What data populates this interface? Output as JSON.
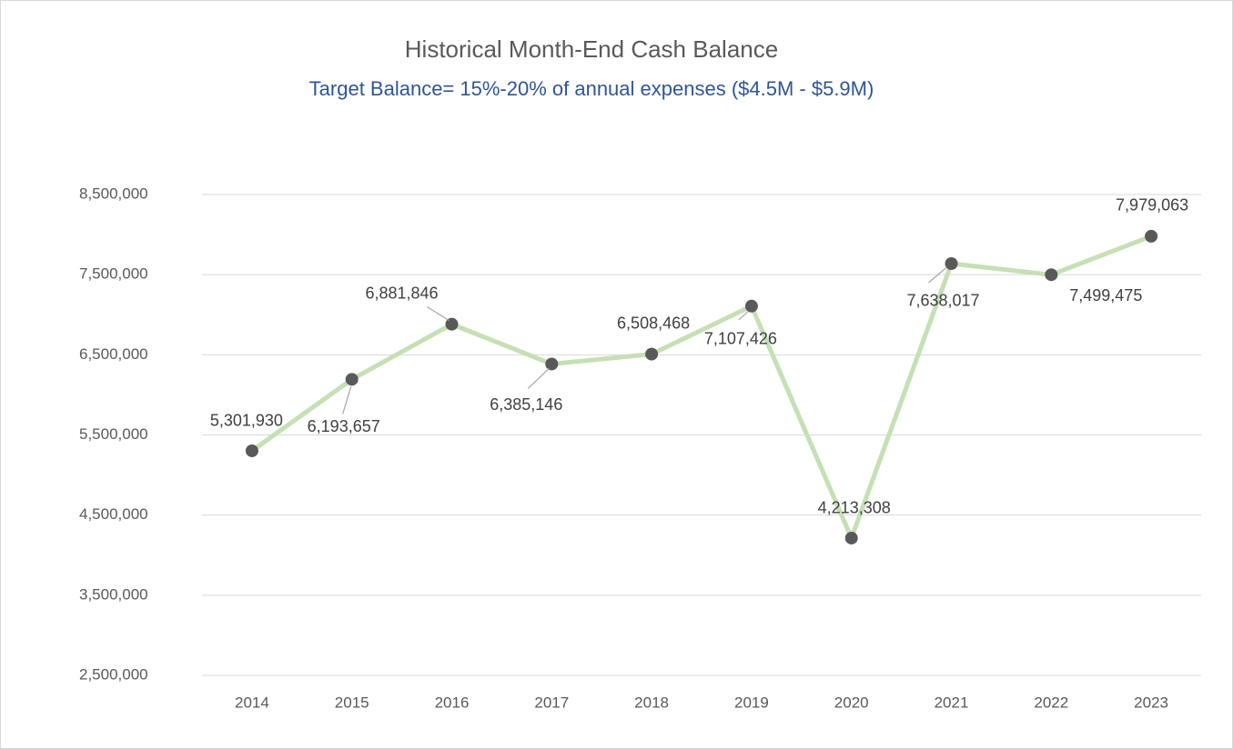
{
  "chart_data": {
    "type": "line",
    "title": "Historical Month-End Cash Balance",
    "subtitle": "Target Balance= 15%-20% of annual expenses ($4.5M - $5.9M)",
    "categories": [
      "2014",
      "2015",
      "2016",
      "2017",
      "2018",
      "2019",
      "2020",
      "2021",
      "2022",
      "2023"
    ],
    "series": [
      {
        "name": "Month-End Cash Balance",
        "color": "#c5e0b4",
        "marker_color": "#595959",
        "values": [
          5301930,
          6193657,
          6881846,
          6385146,
          6508468,
          7107426,
          4213308,
          7638017,
          7499475,
          7979063
        ],
        "value_labels": [
          "5,301,930",
          "6,193,657",
          "6,881,846",
          "6,385,146",
          "6,508,468",
          "7,107,426",
          "4,213,308",
          "7,638,017",
          "7,499,475",
          "7,979,063"
        ]
      }
    ],
    "ylim": [
      2500000,
      8500000
    ],
    "yticks": [
      {
        "value": 2500000,
        "label": "2,500,000"
      },
      {
        "value": 3500000,
        "label": "3,500,000"
      },
      {
        "value": 4500000,
        "label": "4,500,000"
      },
      {
        "value": 5500000,
        "label": "5,500,000"
      },
      {
        "value": 6500000,
        "label": "6,500,000"
      },
      {
        "value": 7500000,
        "label": "7,500,000"
      },
      {
        "value": 8500000,
        "label": "8,500,000"
      }
    ],
    "grid": true
  }
}
